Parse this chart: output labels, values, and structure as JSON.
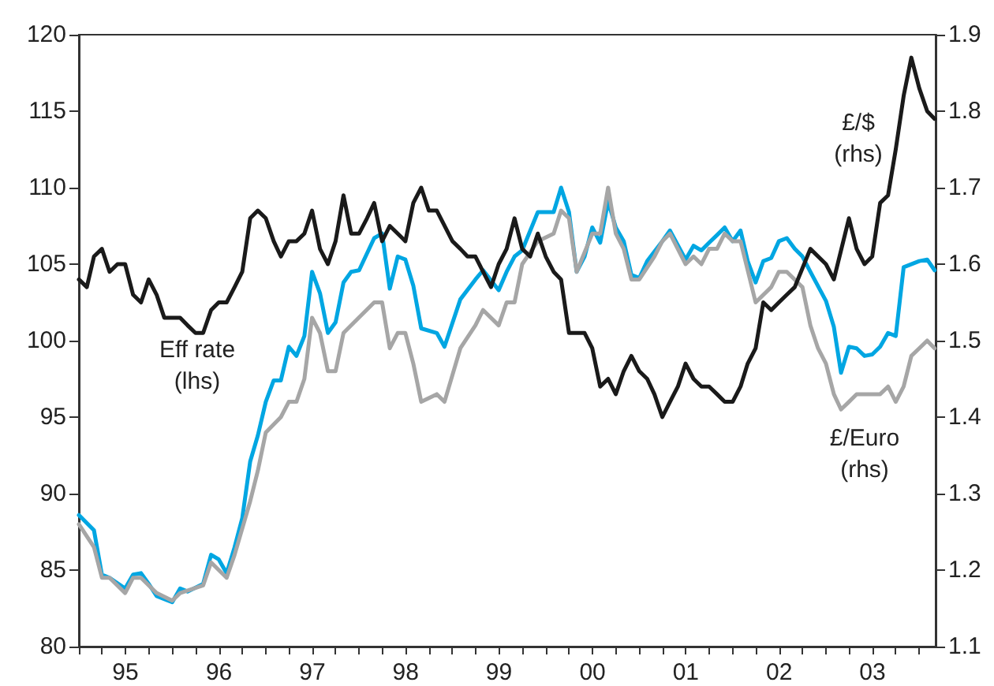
{
  "chart_data": {
    "type": "line",
    "grid": false,
    "marker": "none",
    "line_style": "solid",
    "xlim": [
      "1995-01-01",
      "2004-03-05"
    ],
    "xticks": [
      {
        "value": "1995-01-01",
        "label": null
      },
      {
        "value": "1995-04-01",
        "label": null
      },
      {
        "value": "1995-07-02",
        "label": "95"
      },
      {
        "value": "1995-10-01",
        "label": null
      },
      {
        "value": "1996-01-01",
        "label": null
      },
      {
        "value": "1996-04-01",
        "label": null
      },
      {
        "value": "1996-07-02",
        "label": "96"
      },
      {
        "value": "1996-10-01",
        "label": null
      },
      {
        "value": "1997-01-01",
        "label": null
      },
      {
        "value": "1997-04-01",
        "label": null
      },
      {
        "value": "1997-07-02",
        "label": "97"
      },
      {
        "value": "1997-10-01",
        "label": null
      },
      {
        "value": "1998-01-01",
        "label": null
      },
      {
        "value": "1998-04-01",
        "label": null
      },
      {
        "value": "1998-07-02",
        "label": "98"
      },
      {
        "value": "1998-10-01",
        "label": null
      },
      {
        "value": "1999-01-01",
        "label": null
      },
      {
        "value": "1999-04-01",
        "label": null
      },
      {
        "value": "1999-07-02",
        "label": "99"
      },
      {
        "value": "1999-10-01",
        "label": null
      },
      {
        "value": "2000-01-01",
        "label": null
      },
      {
        "value": "2000-04-01",
        "label": null
      },
      {
        "value": "2000-07-02",
        "label": "00"
      },
      {
        "value": "2000-10-01",
        "label": null
      },
      {
        "value": "2001-01-01",
        "label": null
      },
      {
        "value": "2001-04-01",
        "label": null
      },
      {
        "value": "2001-07-02",
        "label": "01"
      },
      {
        "value": "2001-10-01",
        "label": null
      },
      {
        "value": "2002-01-01",
        "label": null
      },
      {
        "value": "2002-04-01",
        "label": null
      },
      {
        "value": "2002-07-02",
        "label": "02"
      },
      {
        "value": "2002-10-01",
        "label": null
      },
      {
        "value": "2003-01-01",
        "label": null
      },
      {
        "value": "2003-04-01",
        "label": null
      },
      {
        "value": "2003-07-02",
        "label": "03"
      },
      {
        "value": "2003-10-01",
        "label": null
      },
      {
        "value": "2004-01-01",
        "label": null
      }
    ],
    "ylim": [
      80,
      120
    ],
    "yticks": [
      80,
      85,
      90,
      95,
      100,
      105,
      110,
      115,
      120
    ],
    "y2lim": [
      1.1,
      1.9
    ],
    "y2ticks": [
      1.1,
      1.2,
      1.3,
      1.4,
      1.5,
      1.6,
      1.7,
      1.8,
      1.9
    ],
    "annotations": [
      "Eff rate\n(lhs)",
      "£/$\n(rhs)",
      "£/Euro\n(rhs)"
    ],
    "series": [
      {
        "color": "#00a6e2",
        "x": [
          "1995-01",
          "1995-03",
          "1995-04",
          "1995-05",
          "1995-07",
          "1995-08",
          "1995-09",
          "1995-10",
          "1995-11",
          "1996-01",
          "1996-02",
          "1996-03",
          "1996-05",
          "1996-06",
          "1996-07",
          "1996-08",
          "1996-09",
          "1996-10",
          "1996-11",
          "1996-12",
          "1997-01",
          "1997-02",
          "1997-03",
          "1997-04",
          "1997-05",
          "1997-06",
          "1997-07",
          "1997-08",
          "1997-09",
          "1997-10",
          "1997-11",
          "1997-12",
          "1998-01",
          "1998-03",
          "1998-04",
          "1998-05",
          "1998-06",
          "1998-07",
          "1998-08",
          "1998-09",
          "1998-11",
          "1998-12",
          "1999-02",
          "1999-04",
          "1999-05",
          "1999-07",
          "1999-08",
          "1999-09",
          "1999-10",
          "1999-12",
          "2000-02",
          "2000-03",
          "2000-04",
          "2000-05",
          "2000-06",
          "2000-07",
          "2000-08",
          "2000-09",
          "2000-10",
          "2000-11",
          "2000-12",
          "2001-01",
          "2001-02",
          "2001-04",
          "2001-05",
          "2001-07",
          "2001-08",
          "2001-09",
          "2001-10",
          "2001-11",
          "2001-12",
          "2002-01",
          "2002-02",
          "2002-03",
          "2002-04",
          "2002-05",
          "2002-06",
          "2002-07",
          "2002-08",
          "2002-09",
          "2002-10",
          "2002-11",
          "2003-01",
          "2003-02",
          "2003-03",
          "2003-04",
          "2003-05",
          "2003-06",
          "2003-07",
          "2003-08",
          "2003-09",
          "2003-10",
          "2003-11",
          "2004-01",
          "2004-02",
          "2004-03"
        ],
        "values": [
          88.6,
          87.6,
          84.7,
          84.5,
          83.8,
          84.7,
          84.8,
          84.1,
          83.3,
          82.9,
          83.8,
          83.6,
          84.1,
          86.0,
          85.7,
          84.8,
          86.5,
          88.4,
          92.1,
          93.8,
          96.0,
          97.4,
          97.4,
          99.6,
          99.0,
          100.3,
          104.5,
          103.1,
          100.5,
          101.2,
          103.8,
          104.5,
          104.6,
          106.7,
          107.0,
          103.4,
          105.5,
          105.3,
          103.6,
          100.8,
          100.5,
          99.6,
          102.7,
          104.0,
          104.6,
          103.3,
          104.5,
          105.5,
          105.9,
          108.4,
          108.4,
          110.0,
          108.4,
          104.5,
          105.5,
          107.4,
          106.4,
          109.1,
          107.4,
          106.5,
          104.3,
          104.1,
          105.2,
          106.5,
          107.2,
          105.3,
          106.2,
          105.9,
          106.4,
          106.9,
          107.4,
          106.5,
          107.2,
          105.2,
          103.8,
          105.2,
          105.4,
          106.5,
          106.7,
          106.0,
          105.5,
          104.5,
          102.6,
          100.9,
          97.9,
          99.6,
          99.5,
          99.0,
          99.1,
          99.6,
          100.5,
          100.3,
          104.8,
          105.2,
          105.3,
          104.6
        ]
      },
      {
        "color": "#a6a6a6",
        "axis": "y2",
        "x": [
          "1995-01",
          "1995-03",
          "1995-04",
          "1995-05",
          "1995-07",
          "1995-08",
          "1995-09",
          "1995-11",
          "1996-01",
          "1996-02",
          "1996-05",
          "1996-06",
          "1996-08",
          "1996-09",
          "1996-11",
          "1996-12",
          "1997-01",
          "1997-03",
          "1997-04",
          "1997-05",
          "1997-06",
          "1997-07",
          "1997-08",
          "1997-09",
          "1997-10",
          "1997-11",
          "1997-12",
          "1998-03",
          "1998-04",
          "1998-05",
          "1998-06",
          "1998-07",
          "1998-08",
          "1998-09",
          "1998-11",
          "1998-12",
          "1999-02",
          "1999-04",
          "1999-05",
          "1999-07",
          "1999-08",
          "1999-09",
          "1999-10",
          "1999-12",
          "2000-02",
          "2000-03",
          "2000-04",
          "2000-05",
          "2000-07",
          "2000-08",
          "2000-09",
          "2000-10",
          "2000-11",
          "2000-12",
          "2001-01",
          "2001-03",
          "2001-04",
          "2001-05",
          "2001-07",
          "2001-08",
          "2001-09",
          "2001-10",
          "2001-11",
          "2001-12",
          "2002-01",
          "2002-02",
          "2002-04",
          "2002-06",
          "2002-07",
          "2002-08",
          "2002-10",
          "2002-11",
          "2002-12",
          "2003-01",
          "2003-02",
          "2003-03",
          "2003-04",
          "2003-05",
          "2003-06",
          "2003-08",
          "2003-09",
          "2003-10",
          "2003-11",
          "2003-12",
          "2004-01",
          "2004-02",
          "2004-03"
        ],
        "values": [
          1.26,
          1.23,
          1.19,
          1.19,
          1.17,
          1.19,
          1.19,
          1.17,
          1.16,
          1.17,
          1.18,
          1.21,
          1.19,
          1.22,
          1.29,
          1.33,
          1.38,
          1.4,
          1.42,
          1.42,
          1.45,
          1.53,
          1.51,
          1.46,
          1.46,
          1.51,
          1.52,
          1.55,
          1.55,
          1.49,
          1.51,
          1.51,
          1.47,
          1.42,
          1.43,
          1.42,
          1.49,
          1.52,
          1.54,
          1.52,
          1.55,
          1.55,
          1.6,
          1.63,
          1.64,
          1.67,
          1.66,
          1.59,
          1.64,
          1.64,
          1.7,
          1.64,
          1.62,
          1.58,
          1.58,
          1.61,
          1.63,
          1.64,
          1.6,
          1.61,
          1.6,
          1.62,
          1.62,
          1.64,
          1.63,
          1.63,
          1.55,
          1.57,
          1.59,
          1.59,
          1.57,
          1.52,
          1.49,
          1.47,
          1.43,
          1.41,
          1.42,
          1.43,
          1.43,
          1.43,
          1.44,
          1.42,
          1.44,
          1.48,
          1.49,
          1.5,
          1.49
        ]
      },
      {
        "color": "#1a1a1a",
        "axis": "y2",
        "x": [
          "1995-01",
          "1995-02",
          "1995-03",
          "1995-04",
          "1995-05",
          "1995-06",
          "1995-07",
          "1995-08",
          "1995-09",
          "1995-10",
          "1995-11",
          "1995-12",
          "1996-01",
          "1996-02",
          "1996-03",
          "1996-04",
          "1996-05",
          "1996-06",
          "1996-07",
          "1996-08",
          "1996-09",
          "1996-10",
          "1996-11",
          "1996-12",
          "1997-01",
          "1997-02",
          "1997-03",
          "1997-04",
          "1997-05",
          "1997-06",
          "1997-07",
          "1997-08",
          "1997-09",
          "1997-10",
          "1997-11",
          "1997-12",
          "1998-01",
          "1998-02",
          "1998-03",
          "1998-04",
          "1998-05",
          "1998-06",
          "1998-07",
          "1998-08",
          "1998-09",
          "1998-10",
          "1998-11",
          "1999-01",
          "1999-02",
          "1999-03",
          "1999-04",
          "1999-05",
          "1999-06",
          "1999-07",
          "1999-08",
          "1999-09",
          "1999-10",
          "1999-11",
          "1999-12",
          "2000-01",
          "2000-02",
          "2000-03",
          "2000-04",
          "2000-05",
          "2000-06",
          "2000-07",
          "2000-08",
          "2000-09",
          "2000-10",
          "2000-11",
          "2000-12",
          "2001-01",
          "2001-02",
          "2001-03",
          "2001-04",
          "2001-05",
          "2001-06",
          "2001-07",
          "2001-08",
          "2001-09",
          "2001-10",
          "2001-11",
          "2001-12",
          "2002-01",
          "2002-02",
          "2002-03",
          "2002-04",
          "2002-05",
          "2002-06",
          "2002-07",
          "2002-08",
          "2002-09",
          "2002-11",
          "2003-01",
          "2003-02",
          "2003-04",
          "2003-05",
          "2003-06",
          "2003-07",
          "2003-08",
          "2003-09",
          "2003-10",
          "2003-11",
          "2003-12",
          "2004-01",
          "2004-02",
          "2004-03"
        ],
        "values": [
          1.58,
          1.57,
          1.61,
          1.62,
          1.59,
          1.6,
          1.6,
          1.56,
          1.55,
          1.58,
          1.56,
          1.53,
          1.53,
          1.53,
          1.52,
          1.51,
          1.51,
          1.54,
          1.55,
          1.55,
          1.57,
          1.59,
          1.66,
          1.67,
          1.66,
          1.63,
          1.61,
          1.63,
          1.63,
          1.64,
          1.67,
          1.62,
          1.6,
          1.63,
          1.69,
          1.64,
          1.64,
          1.66,
          1.68,
          1.63,
          1.65,
          1.64,
          1.63,
          1.68,
          1.7,
          1.67,
          1.67,
          1.63,
          1.62,
          1.61,
          1.61,
          1.59,
          1.57,
          1.6,
          1.62,
          1.66,
          1.62,
          1.61,
          1.64,
          1.61,
          1.59,
          1.58,
          1.51,
          1.51,
          1.51,
          1.49,
          1.44,
          1.45,
          1.43,
          1.46,
          1.48,
          1.46,
          1.45,
          1.43,
          1.4,
          1.42,
          1.44,
          1.47,
          1.45,
          1.44,
          1.44,
          1.43,
          1.42,
          1.42,
          1.44,
          1.47,
          1.49,
          1.55,
          1.54,
          1.55,
          1.56,
          1.57,
          1.62,
          1.6,
          1.58,
          1.66,
          1.62,
          1.6,
          1.61,
          1.68,
          1.69,
          1.75,
          1.82,
          1.87,
          1.83,
          1.8,
          1.79
        ]
      }
    ]
  }
}
